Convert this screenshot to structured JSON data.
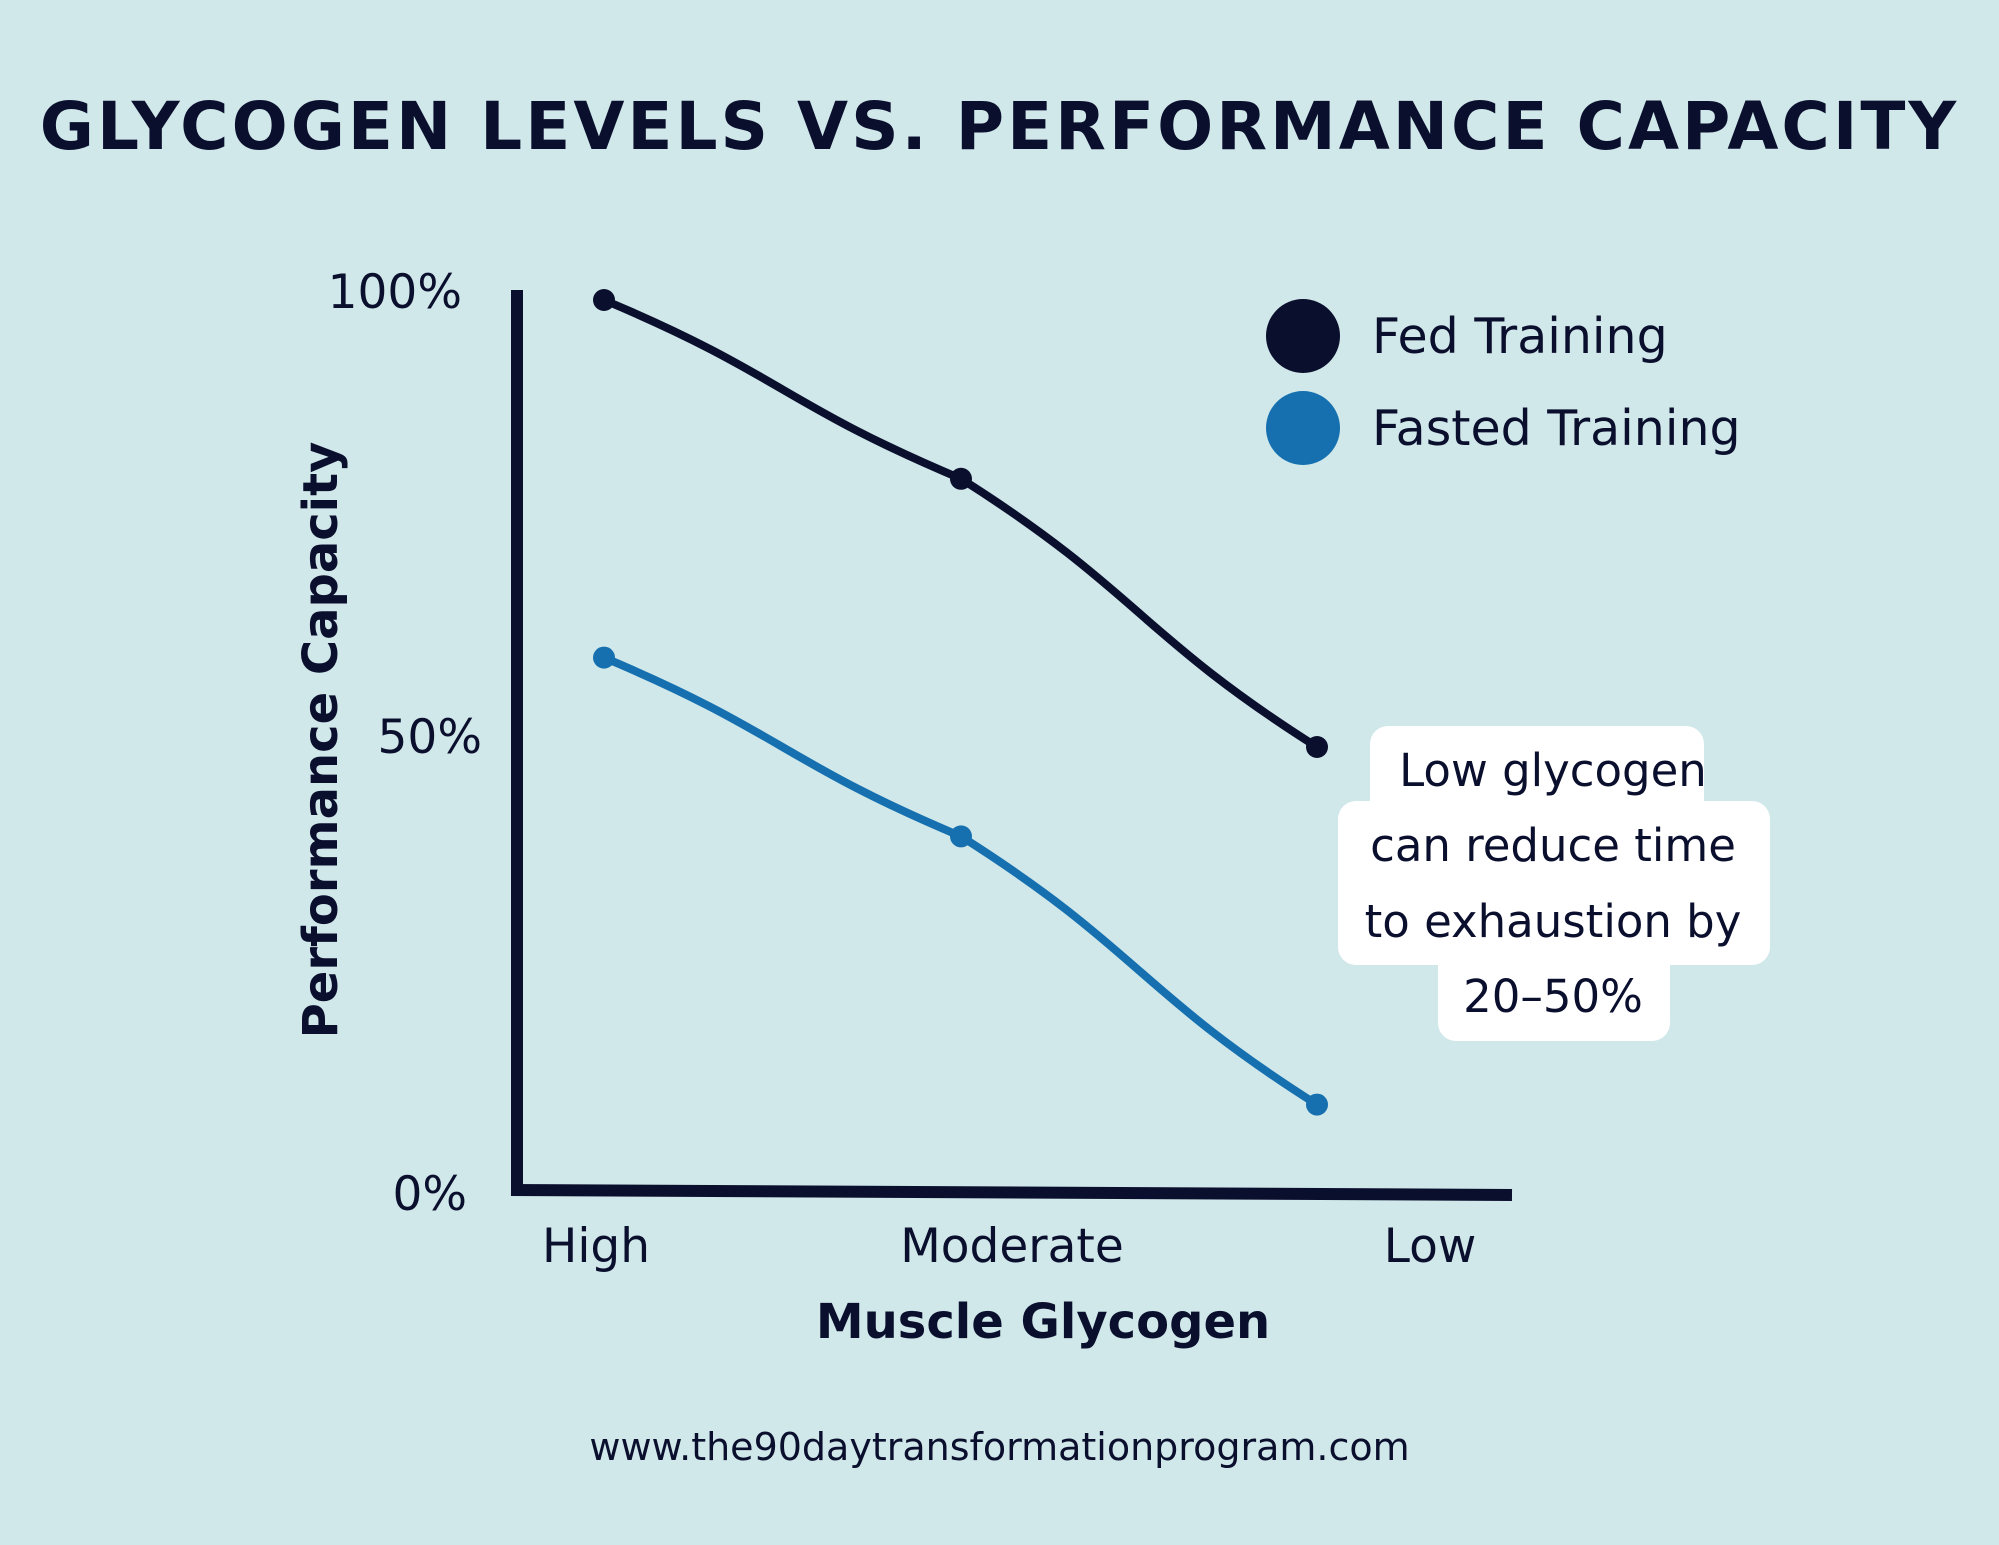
{
  "chart_data": {
    "type": "line",
    "title": "GLYCOGEN LEVELS VS. PERFORMANCE CAPACITY",
    "xlabel": "Muscle Glycogen",
    "ylabel": "Performance Capacity",
    "categories": [
      "High",
      "Moderate",
      "Low"
    ],
    "yticks": [
      "100%",
      "50%",
      "0%"
    ],
    "ylim": [
      0,
      100
    ],
    "grid": false,
    "legend_position": "top-right",
    "series": [
      {
        "name": "Fed Training",
        "values": [
          100,
          80,
          50
        ],
        "color": "#0b0f2e"
      },
      {
        "name": "Fasted Training",
        "values": [
          60,
          40,
          10
        ],
        "color": "#1670b0"
      }
    ],
    "annotation": {
      "lines": [
        "Low glycogen",
        "can reduce time",
        "to exhaustion by",
        "20–50%"
      ]
    }
  },
  "footer": {
    "url": "www.the90daytransformationprogram.com"
  }
}
